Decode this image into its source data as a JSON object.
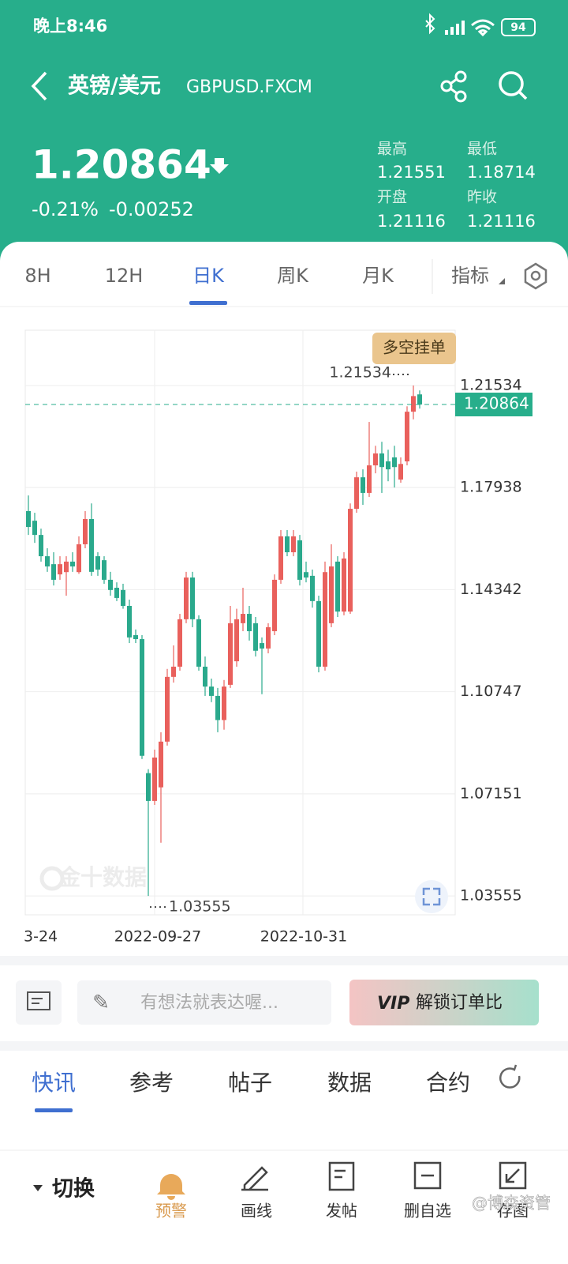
{
  "status_bar": {
    "time": "晚上8:46",
    "battery": "94"
  },
  "header": {
    "title": "英镑/美元",
    "code": "GBPUSD.FXCM"
  },
  "quote": {
    "price": "1.20864",
    "change_pct": "-0.21%",
    "change_abs": "-0.00252",
    "stats": [
      {
        "label": "最高",
        "value": "1.21551"
      },
      {
        "label": "最低",
        "value": "1.18714"
      },
      {
        "label": "开盘",
        "value": "1.21116"
      },
      {
        "label": "昨收",
        "value": "1.21116"
      }
    ]
  },
  "tabs": [
    "8H",
    "12H",
    "日K",
    "周K",
    "月K",
    "指标"
  ],
  "chart_data": {
    "type": "candlestick",
    "button": "多空挂单",
    "watermark": "金十数据",
    "x_labels": [
      "3-24",
      "2022-09-27",
      "2022-10-31"
    ],
    "up_color": "#e9605c",
    "down_color": "#2aa98c",
    "grid": true,
    "ylim": [
      1.0289,
      1.2348
    ],
    "yticks": [
      1.21534,
      1.17938,
      1.14342,
      1.10747,
      1.07151,
      1.03555
    ],
    "last": 1.20864,
    "high_mark": 1.21534,
    "low_mark": 1.03555,
    "open": [
      1.1711,
      1.1677,
      1.1627,
      1.1552,
      1.1524,
      1.1488,
      1.1496,
      1.1533,
      1.1496,
      1.1594,
      1.1683,
      1.1552,
      1.1538,
      1.1469,
      1.1441,
      1.1433,
      1.1377,
      1.1274,
      1.126,
      1.0788,
      1.069,
      1.0738,
      1.0899,
      1.1127,
      1.1163,
      1.133,
      1.1477,
      1.133,
      1.1163,
      1.1093,
      1.106,
      1.0975,
      1.1099,
      1.1182,
      1.1316,
      1.1349,
      1.1316,
      1.1246,
      1.1227,
      1.1288,
      1.1469,
      1.1622,
      1.1566,
      1.1608,
      1.1496,
      1.1483,
      1.1394,
      1.1163,
      1.1316,
      1.1533,
      1.1357,
      1.1357,
      1.1719,
      1.183,
      1.1775,
      1.1872,
      1.1914,
      1.1886,
      1.19,
      1.1822,
      1.1886,
      1.2061,
      1.2122
    ],
    "high": [
      1.1766,
      1.1705,
      1.1649,
      1.158,
      1.1566,
      1.1552,
      1.1552,
      1.1566,
      1.1622,
      1.1711,
      1.1738,
      1.1566,
      1.1552,
      1.1497,
      1.146,
      1.1455,
      1.1399,
      1.1294,
      1.1274,
      1.0802,
      1.0871,
      1.0932,
      1.1155,
      1.1238,
      1.1349,
      1.1497,
      1.1497,
      1.1344,
      1.1199,
      1.1121,
      1.1088,
      1.1116,
      1.1377,
      1.1367,
      1.1441,
      1.1377,
      1.1338,
      1.1266,
      1.1316,
      1.1488,
      1.1644,
      1.1644,
      1.1644,
      1.1627,
      1.1533,
      1.1505,
      1.1413,
      1.1533,
      1.1594,
      1.1552,
      1.1566,
      1.1738,
      1.185,
      1.1858,
      1.2025,
      1.1941,
      1.1955,
      1.1927,
      1.1941,
      1.19,
      1.208,
      1.21534,
      1.2136
    ],
    "low": [
      1.1627,
      1.1599,
      1.1533,
      1.1497,
      1.1449,
      1.1469,
      1.1413,
      1.1497,
      1.149,
      1.158,
      1.1483,
      1.1483,
      1.1455,
      1.1413,
      1.1394,
      1.1367,
      1.1246,
      1.1246,
      1.0838,
      1.03555,
      1.0676,
      1.0543,
      1.0885,
      1.1107,
      1.1149,
      1.1316,
      1.1302,
      1.1149,
      1.106,
      1.1038,
      1.0932,
      1.0941,
      1.1088,
      1.1163,
      1.1288,
      1.1255,
      1.1199,
      1.1066,
      1.121,
      1.1274,
      1.1455,
      1.1552,
      1.1552,
      1.1449,
      1.146,
      1.1371,
      1.1143,
      1.1149,
      1.1302,
      1.1338,
      1.1344,
      1.1349,
      1.1705,
      1.1733,
      1.1761,
      1.1844,
      1.1775,
      1.1816,
      1.1794,
      1.1811,
      1.1872,
      1.2034,
      1.2072
    ],
    "close": [
      1.1655,
      1.1627,
      1.1552,
      1.1516,
      1.1469,
      1.1524,
      1.1533,
      1.1516,
      1.1594,
      1.1683,
      1.1497,
      1.1505,
      1.1469,
      1.1433,
      1.1405,
      1.1377,
      1.1266,
      1.126,
      1.0849,
      1.069,
      1.0843,
      1.0899,
      1.1127,
      1.1163,
      1.133,
      1.1477,
      1.133,
      1.1163,
      1.1093,
      1.106,
      1.0975,
      1.1093,
      1.1316,
      1.133,
      1.1349,
      1.1288,
      1.1219,
      1.1227,
      1.1302,
      1.1469,
      1.1622,
      1.1566,
      1.1622,
      1.1469,
      1.1477,
      1.1394,
      1.1163,
      1.1496,
      1.1516,
      1.1357,
      1.1544,
      1.1719,
      1.183,
      1.1775,
      1.1872,
      1.1914,
      1.1866,
      1.1858,
      1.1866,
      1.1877,
      1.2061,
      1.2116,
      1.20864
    ]
  },
  "comment_bar": {
    "placeholder": "有想法就表达喔...",
    "vip_logo": "VIP",
    "vip_text": "解锁订单比"
  },
  "news_tabs": [
    "快讯",
    "参考",
    "帖子",
    "数据",
    "合约"
  ],
  "bottom_nav": {
    "switch": "切换",
    "items": [
      "预警",
      "画线",
      "发帖",
      "删自选",
      "存图"
    ],
    "watermark": "@博森资管"
  }
}
